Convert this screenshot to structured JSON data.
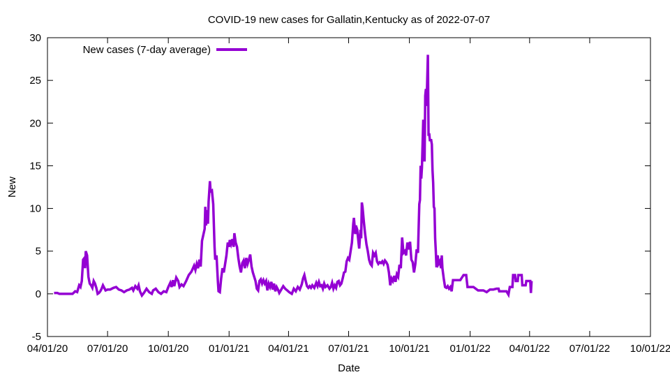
{
  "chart_data": {
    "type": "line",
    "title": "COVID-19 new cases for Gallatin,Kentucky as of 2022-07-07",
    "xlabel": "Date",
    "ylabel": "New",
    "legend": {
      "label": "New cases (7-day average)",
      "placement": "top-left"
    },
    "ylim": [
      -5,
      30
    ],
    "yticks": [
      -5,
      0,
      5,
      10,
      15,
      20,
      25,
      30
    ],
    "xticks": [
      "04/01/20",
      "07/01/20",
      "10/01/20",
      "01/01/21",
      "04/01/21",
      "07/01/21",
      "10/01/21",
      "01/01/22",
      "04/01/22",
      "07/01/22",
      "10/01/22"
    ],
    "xlim_days": [
      0,
      913
    ],
    "xtick_days": [
      0,
      91,
      183,
      275,
      365,
      456,
      548,
      640,
      730,
      821,
      913
    ],
    "grid": false,
    "colors": {
      "line": "#9400d3",
      "axis": "#000000"
    },
    "series": [
      {
        "name": "New cases (7-day average)",
        "points": [
          [
            10,
            0.1
          ],
          [
            15,
            0.1
          ],
          [
            18,
            0.0
          ],
          [
            25,
            0.0
          ],
          [
            32,
            0.0
          ],
          [
            38,
            0.0
          ],
          [
            42,
            0.3
          ],
          [
            45,
            0.2
          ],
          [
            48,
            1.0
          ],
          [
            50,
            0.8
          ],
          [
            52,
            1.5
          ],
          [
            54,
            4.0
          ],
          [
            56,
            4.2
          ],
          [
            57,
            3.0
          ],
          [
            58,
            5.0
          ],
          [
            60,
            4.5
          ],
          [
            62,
            2.0
          ],
          [
            64,
            1.2
          ],
          [
            66,
            1.0
          ],
          [
            68,
            0.7
          ],
          [
            70,
            1.5
          ],
          [
            72,
            1.2
          ],
          [
            74,
            0.7
          ],
          [
            76,
            0.0
          ],
          [
            78,
            0.1
          ],
          [
            80,
            0.3
          ],
          [
            82,
            0.6
          ],
          [
            84,
            1.0
          ],
          [
            86,
            0.7
          ],
          [
            88,
            0.4
          ],
          [
            91,
            0.5
          ],
          [
            95,
            0.5
          ],
          [
            100,
            0.7
          ],
          [
            104,
            0.8
          ],
          [
            108,
            0.5
          ],
          [
            112,
            0.4
          ],
          [
            116,
            0.2
          ],
          [
            120,
            0.4
          ],
          [
            124,
            0.5
          ],
          [
            128,
            0.7
          ],
          [
            130,
            0.4
          ],
          [
            133,
            0.9
          ],
          [
            136,
            0.6
          ],
          [
            138,
            1.0
          ],
          [
            140,
            0.3
          ],
          [
            143,
            -0.2
          ],
          [
            146,
            0.1
          ],
          [
            150,
            0.6
          ],
          [
            154,
            0.2
          ],
          [
            158,
            0.0
          ],
          [
            160,
            0.4
          ],
          [
            164,
            0.6
          ],
          [
            168,
            0.2
          ],
          [
            172,
            0.0
          ],
          [
            176,
            0.3
          ],
          [
            180,
            0.2
          ],
          [
            183,
            0.8
          ],
          [
            186,
            1.3
          ],
          [
            188,
            0.8
          ],
          [
            190,
            1.6
          ],
          [
            192,
            0.9
          ],
          [
            195,
            1.9
          ],
          [
            198,
            1.5
          ],
          [
            200,
            0.8
          ],
          [
            203,
            1.1
          ],
          [
            206,
            0.9
          ],
          [
            210,
            1.5
          ],
          [
            214,
            2.2
          ],
          [
            218,
            2.6
          ],
          [
            222,
            3.3
          ],
          [
            224,
            2.8
          ],
          [
            226,
            3.5
          ],
          [
            228,
            3.0
          ],
          [
            230,
            4.0
          ],
          [
            232,
            3.2
          ],
          [
            234,
            6.2
          ],
          [
            236,
            6.9
          ],
          [
            238,
            7.6
          ],
          [
            239,
            10.2
          ],
          [
            240,
            8.0
          ],
          [
            242,
            9.8
          ],
          [
            243,
            8.2
          ],
          [
            244,
            10.8
          ],
          [
            246,
            13.2
          ],
          [
            247,
            12.0
          ],
          [
            249,
            12.1
          ],
          [
            251,
            10.5
          ],
          [
            253,
            5.5
          ],
          [
            254,
            4.0
          ],
          [
            256,
            4.5
          ],
          [
            258,
            1.5
          ],
          [
            259,
            0.3
          ],
          [
            261,
            0.2
          ],
          [
            263,
            1.8
          ],
          [
            265,
            3.0
          ],
          [
            267,
            2.5
          ],
          [
            269,
            3.5
          ],
          [
            271,
            4.5
          ],
          [
            273,
            6.0
          ],
          [
            275,
            5.5
          ],
          [
            276,
            6.3
          ],
          [
            278,
            5.8
          ],
          [
            280,
            6.4
          ],
          [
            282,
            5.5
          ],
          [
            283,
            7.1
          ],
          [
            285,
            6.0
          ],
          [
            287,
            5.5
          ],
          [
            289,
            4.2
          ],
          [
            291,
            3.2
          ],
          [
            293,
            2.5
          ],
          [
            295,
            3.6
          ],
          [
            297,
            3.9
          ],
          [
            299,
            3.0
          ],
          [
            301,
            4.2
          ],
          [
            303,
            3.5
          ],
          [
            305,
            4.0
          ],
          [
            307,
            4.6
          ],
          [
            309,
            3.2
          ],
          [
            311,
            2.5
          ],
          [
            313,
            2.0
          ],
          [
            315,
            1.5
          ],
          [
            317,
            0.6
          ],
          [
            319,
            0.4
          ],
          [
            321,
            1.5
          ],
          [
            323,
            1.7
          ],
          [
            325,
            1.2
          ],
          [
            327,
            1.6
          ],
          [
            329,
            1.2
          ],
          [
            331,
            1.5
          ],
          [
            333,
            0.4
          ],
          [
            335,
            1.2
          ],
          [
            337,
            0.8
          ],
          [
            339,
            1.4
          ],
          [
            341,
            0.5
          ],
          [
            343,
            1.2
          ],
          [
            345,
            0.3
          ],
          [
            347,
            0.8
          ],
          [
            349,
            0.5
          ],
          [
            351,
            0.1
          ],
          [
            354,
            0.5
          ],
          [
            357,
            0.9
          ],
          [
            360,
            0.6
          ],
          [
            363,
            0.4
          ],
          [
            366,
            0.2
          ],
          [
            370,
            0.0
          ],
          [
            373,
            0.6
          ],
          [
            376,
            0.3
          ],
          [
            379,
            0.8
          ],
          [
            382,
            0.5
          ],
          [
            385,
            1.1
          ],
          [
            387,
            1.8
          ],
          [
            389,
            2.2
          ],
          [
            391,
            1.5
          ],
          [
            393,
            0.9
          ],
          [
            395,
            0.7
          ],
          [
            397,
            0.9
          ],
          [
            399,
            0.7
          ],
          [
            401,
            1.0
          ],
          [
            404,
            0.7
          ],
          [
            407,
            1.3
          ],
          [
            409,
            0.9
          ],
          [
            411,
            1.4
          ],
          [
            413,
            0.9
          ],
          [
            415,
            1.0
          ],
          [
            417,
            0.6
          ],
          [
            419,
            1.2
          ],
          [
            421,
            0.8
          ],
          [
            424,
            1.0
          ],
          [
            427,
            0.6
          ],
          [
            429,
            0.8
          ],
          [
            431,
            1.3
          ],
          [
            433,
            0.6
          ],
          [
            435,
            1.0
          ],
          [
            437,
            0.7
          ],
          [
            439,
            1.4
          ],
          [
            441,
            1.5
          ],
          [
            443,
            1.0
          ],
          [
            445,
            1.2
          ],
          [
            447,
            1.8
          ],
          [
            449,
            2.5
          ],
          [
            451,
            2.6
          ],
          [
            453,
            3.8
          ],
          [
            455,
            4.2
          ],
          [
            457,
            4.0
          ],
          [
            459,
            5.0
          ],
          [
            461,
            6.0
          ],
          [
            463,
            8.2
          ],
          [
            464,
            8.9
          ],
          [
            466,
            7.0
          ],
          [
            467,
            8.0
          ],
          [
            469,
            7.5
          ],
          [
            471,
            6.0
          ],
          [
            472,
            5.3
          ],
          [
            474,
            7.5
          ],
          [
            475,
            6.5
          ],
          [
            476,
            10.7
          ],
          [
            477,
            10.2
          ],
          [
            479,
            8.5
          ],
          [
            481,
            7.0
          ],
          [
            483,
            5.8
          ],
          [
            485,
            5.0
          ],
          [
            487,
            4.0
          ],
          [
            489,
            3.5
          ],
          [
            491,
            3.3
          ],
          [
            493,
            4.8
          ],
          [
            495,
            4.5
          ],
          [
            497,
            4.8
          ],
          [
            499,
            3.8
          ],
          [
            501,
            3.5
          ],
          [
            503,
            3.7
          ],
          [
            505,
            3.6
          ],
          [
            507,
            3.8
          ],
          [
            509,
            3.5
          ],
          [
            511,
            3.9
          ],
          [
            513,
            3.7
          ],
          [
            515,
            3.4
          ],
          [
            517,
            2.5
          ],
          [
            519,
            1.0
          ],
          [
            521,
            1.8
          ],
          [
            523,
            1.5
          ],
          [
            525,
            2.1
          ],
          [
            527,
            1.4
          ],
          [
            529,
            2.3
          ],
          [
            531,
            2.0
          ],
          [
            533,
            3.4
          ],
          [
            535,
            3.0
          ],
          [
            537,
            6.6
          ],
          [
            539,
            4.8
          ],
          [
            541,
            5.0
          ],
          [
            543,
            4.5
          ],
          [
            545,
            6.0
          ],
          [
            547,
            5.2
          ],
          [
            549,
            6.1
          ],
          [
            551,
            4.0
          ],
          [
            553,
            3.7
          ],
          [
            555,
            2.5
          ],
          [
            557,
            3.5
          ],
          [
            559,
            5.2
          ],
          [
            561,
            4.8
          ],
          [
            563,
            10.5
          ],
          [
            564,
            11.0
          ],
          [
            565,
            15.0
          ],
          [
            566,
            13.5
          ],
          [
            567,
            14.8
          ],
          [
            569,
            20.4
          ],
          [
            570,
            17.2
          ],
          [
            571,
            15.5
          ],
          [
            572,
            23.2
          ],
          [
            573,
            24.0
          ],
          [
            574,
            22.0
          ],
          [
            575,
            25.0
          ],
          [
            576,
            28.0
          ],
          [
            577,
            18.5
          ],
          [
            578,
            18.8
          ],
          [
            579,
            18.0
          ],
          [
            581,
            18.0
          ],
          [
            582,
            17.5
          ],
          [
            583,
            14.5
          ],
          [
            584,
            13.0
          ],
          [
            585,
            10.2
          ],
          [
            586,
            10.0
          ],
          [
            587,
            6.5
          ],
          [
            588,
            5.0
          ],
          [
            589,
            3.1
          ],
          [
            590,
            4.2
          ],
          [
            591,
            4.5
          ],
          [
            592,
            3.5
          ],
          [
            594,
            3.8
          ],
          [
            596,
            3.0
          ],
          [
            597,
            4.5
          ],
          [
            598,
            3.0
          ],
          [
            600,
            1.8
          ],
          [
            602,
            0.8
          ],
          [
            604,
            0.7
          ],
          [
            606,
            0.9
          ],
          [
            608,
            0.6
          ],
          [
            610,
            0.8
          ],
          [
            612,
            0.3
          ],
          [
            614,
            1.6
          ],
          [
            620,
            1.6
          ],
          [
            625,
            1.6
          ],
          [
            630,
            2.2
          ],
          [
            634,
            2.2
          ],
          [
            636,
            0.8
          ],
          [
            645,
            0.8
          ],
          [
            652,
            0.4
          ],
          [
            660,
            0.4
          ],
          [
            665,
            0.2
          ],
          [
            670,
            0.5
          ],
          [
            675,
            0.5
          ],
          [
            680,
            0.6
          ],
          [
            683,
            0.6
          ],
          [
            684,
            0.3
          ],
          [
            695,
            0.3
          ],
          [
            698,
            -0.1
          ],
          [
            700,
            0.8
          ],
          [
            704,
            0.8
          ],
          [
            705,
            2.2
          ],
          [
            708,
            2.2
          ],
          [
            709,
            1.5
          ],
          [
            712,
            1.5
          ],
          [
            713,
            2.2
          ],
          [
            718,
            2.2
          ],
          [
            719,
            1.0
          ],
          [
            724,
            1.0
          ],
          [
            725,
            1.5
          ],
          [
            731,
            1.5
          ],
          [
            732,
            0.1
          ],
          [
            733,
            1.5
          ]
        ]
      }
    ]
  }
}
